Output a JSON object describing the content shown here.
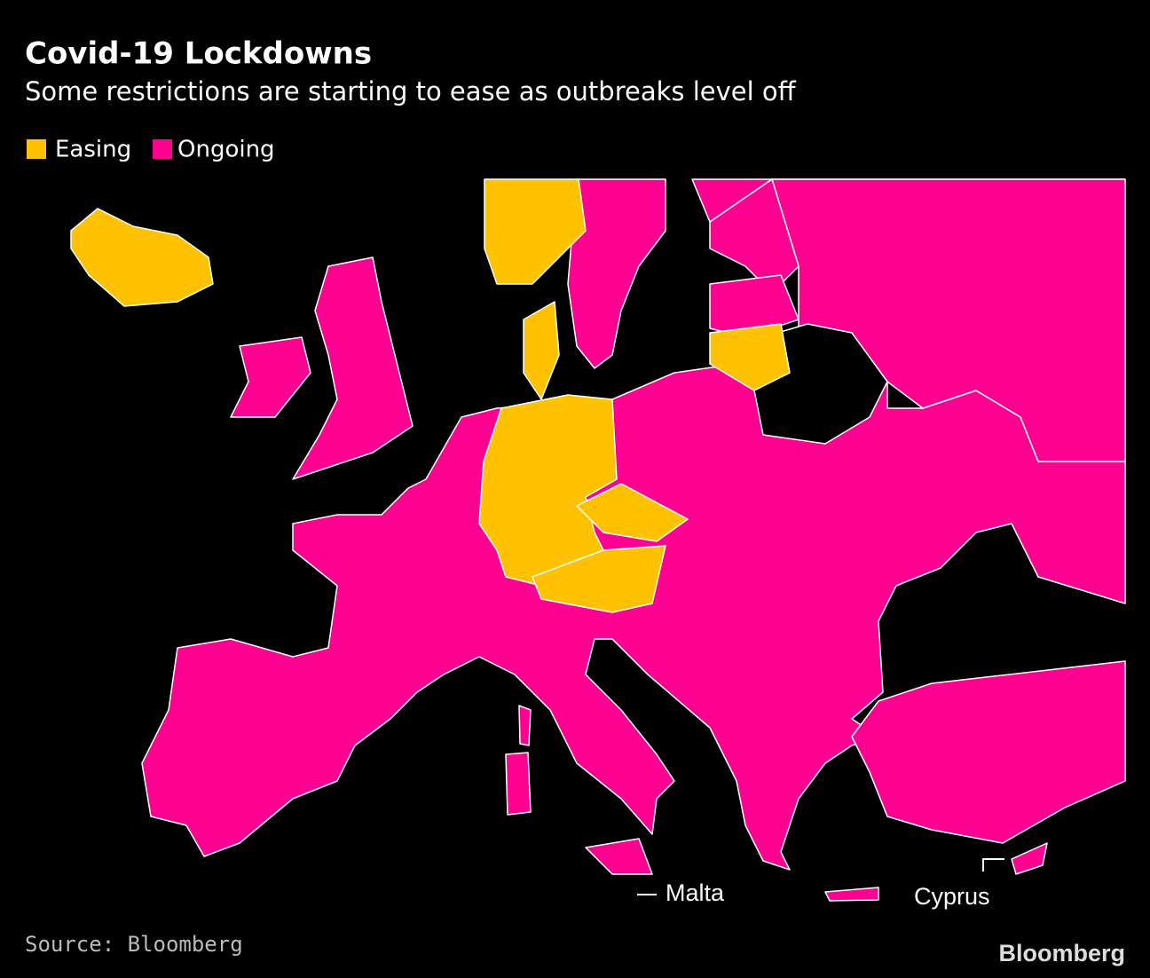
{
  "header": {
    "title": "Covid-19 Lockdowns",
    "subtitle": "Some restrictions are starting to ease as outbreaks level off"
  },
  "legend": [
    {
      "name": "Easing",
      "color": "#ffc200"
    },
    {
      "name": "Ongoing",
      "color": "#ff0090"
    }
  ],
  "map": {
    "labels": [
      "Malta",
      "Cyprus"
    ]
  },
  "footer": {
    "source": "Source: Bloomberg",
    "logo": "Bloomberg"
  }
}
